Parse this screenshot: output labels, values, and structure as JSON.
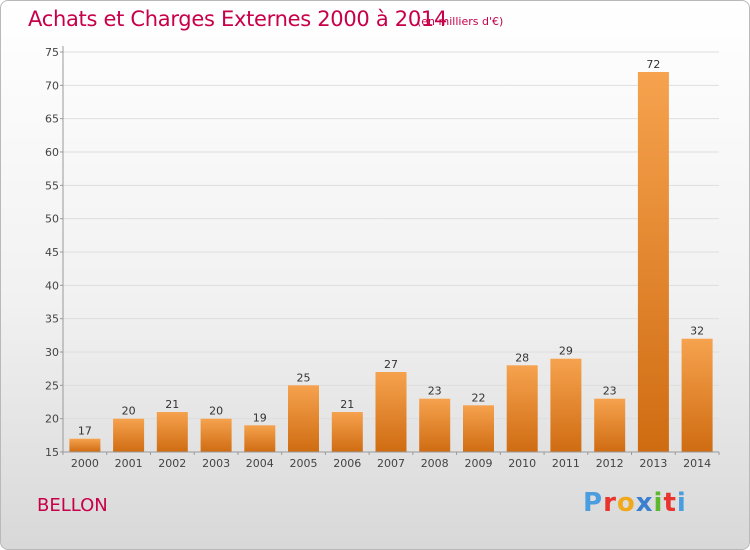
{
  "header": {
    "title": "Achats et Charges Externes 2000 à 2014",
    "subtitle": "(en milliers d'€)"
  },
  "footer": {
    "commune": "BELLON",
    "logo_text": "Proxiti",
    "logo_colors": [
      "#4a9ee0",
      "#e8342c",
      "#f0a81c",
      "#3a7fd0",
      "#5cb82c",
      "#e8342c",
      "#4a9ee0"
    ]
  },
  "colors": {
    "title": "#c8004a",
    "bar_light": "#f6a24e",
    "bar_dark": "#cf6c12",
    "grid": "#dedede",
    "axis": "#999999"
  },
  "chart_data": {
    "type": "bar",
    "title": "Achats et Charges Externes 2000 à 2014",
    "subtitle": "(en milliers d'€)",
    "categories": [
      "2000",
      "2001",
      "2002",
      "2003",
      "2004",
      "2005",
      "2006",
      "2007",
      "2008",
      "2009",
      "2010",
      "2011",
      "2012",
      "2013",
      "2014"
    ],
    "values": [
      17,
      20,
      21,
      20,
      19,
      25,
      21,
      27,
      23,
      22,
      28,
      29,
      23,
      72,
      32
    ],
    "ylim": [
      15,
      75
    ],
    "yticks": [
      15,
      20,
      25,
      30,
      35,
      40,
      45,
      50,
      55,
      60,
      65,
      70,
      75
    ],
    "grid": true,
    "data_labels": true
  }
}
